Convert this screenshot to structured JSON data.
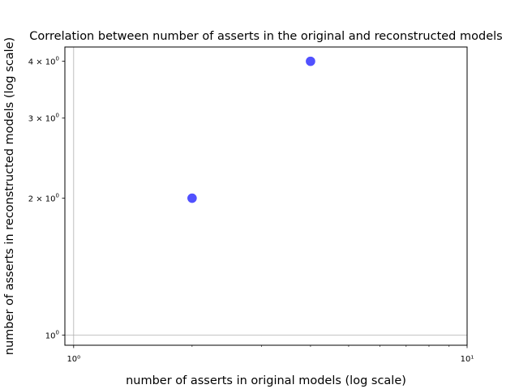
{
  "chart_data": {
    "type": "scatter",
    "title": "Correlation between number of asserts in the original and reconstructed models",
    "xlabel": "number of asserts in original models (log scale)",
    "ylabel": "number of asserts in reconstructed models (log scale)",
    "xscale": "log",
    "yscale": "log",
    "xlim": [
      0.95,
      10
    ],
    "ylim": [
      0.95,
      4.3
    ],
    "x_ticks": [
      {
        "value": 1,
        "label": "10⁰"
      },
      {
        "value": 10,
        "label": "10¹"
      }
    ],
    "y_ticks": [
      {
        "value": 1,
        "base": "10",
        "exp": "0"
      },
      {
        "value": 2,
        "base": "2 × 10",
        "exp": "0"
      },
      {
        "value": 3,
        "base": "3 × 10",
        "exp": "0"
      },
      {
        "value": 4,
        "base": "4 × 10",
        "exp": "0"
      }
    ],
    "grid": "major only",
    "points": [
      {
        "x": 2,
        "y": 2
      },
      {
        "x": 4,
        "y": 4
      }
    ],
    "point_color": "#3333ff"
  }
}
